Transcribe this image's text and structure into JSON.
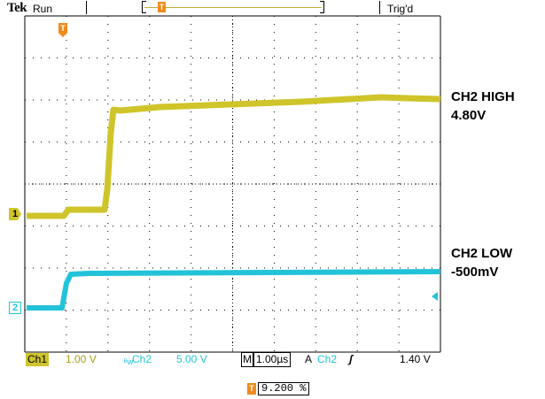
{
  "header": {
    "brand": "Tek",
    "run_state": "Run",
    "trigger_status": "Trig'd",
    "record_marker_icon": "trigger-position-marker",
    "trigger_marker_icon": "trigger-position-marker"
  },
  "channels": {
    "ch1": {
      "marker": "1",
      "color": "#cfc52a"
    },
    "ch2": {
      "marker": "2",
      "color": "#22c3d8"
    }
  },
  "annotations": {
    "high_label": "CH2 HIGH",
    "high_value": "4.80V",
    "low_label": "CH2 LOW",
    "low_value": "-500mV"
  },
  "status_bar": {
    "ch1_name": "Ch1",
    "ch1_scale": "1.00 V",
    "bw_symbol": "ᴮw",
    "ch2_name": "Ch2",
    "ch2_scale": "5.00 V",
    "timebase_prefix": "M",
    "timebase": "1.00µs",
    "acq_mode": "A",
    "trigger_source": "Ch2",
    "trigger_slope": "ʃ",
    "trigger_level": "1.40 V"
  },
  "footer": {
    "trigger_position": "9.200 %"
  },
  "colors": {
    "ch1": "#cfc52a",
    "ch2": "#22c3d8",
    "trigger_marker": "#f08a1a",
    "grid": "#000000"
  }
}
